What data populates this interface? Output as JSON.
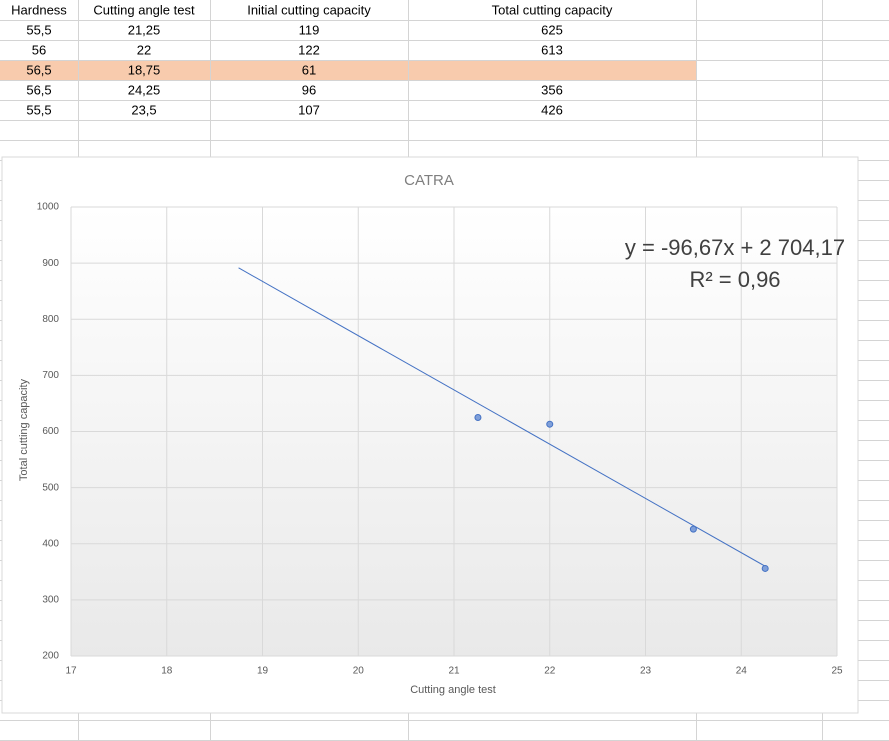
{
  "table": {
    "header": [
      "Hardness",
      "Cutting angle test",
      "Initial cutting capacity",
      "Total cutting capacity"
    ],
    "rows": [
      [
        "55,5",
        "21,25",
        "119",
        "625"
      ],
      [
        "56",
        "22",
        "122",
        "613"
      ],
      [
        "56,5",
        "18,75",
        "61",
        null
      ],
      [
        "56,5",
        "24,25",
        "96",
        "356"
      ],
      [
        "55,5",
        "23,5",
        "107",
        "426"
      ]
    ],
    "highlight": {
      "row": 2,
      "color": "#f8cbad"
    }
  },
  "chart_data": {
    "type": "scatter",
    "title": "CATRA",
    "x_label": "Cutting angle test",
    "y_label": "Total cutting capacity",
    "x": [
      21.25,
      22,
      23.5,
      24.25
    ],
    "values": [
      625,
      613,
      426,
      356
    ],
    "color": "#4472c4",
    "xlim": [
      17,
      25
    ],
    "xticks": [
      17,
      18,
      19,
      20,
      21,
      22,
      23,
      24,
      25
    ],
    "ylim": [
      200,
      1000
    ],
    "yticks": [
      200,
      300,
      400,
      500,
      600,
      700,
      800,
      900,
      1000
    ],
    "grid": true,
    "trendline": {
      "slope": -96.67,
      "intercept": 2704.17,
      "x_range": [
        18.75,
        24.25
      ],
      "equation": "y = -96,67x + 2 704,17",
      "r2": "R² = 0,96"
    }
  }
}
